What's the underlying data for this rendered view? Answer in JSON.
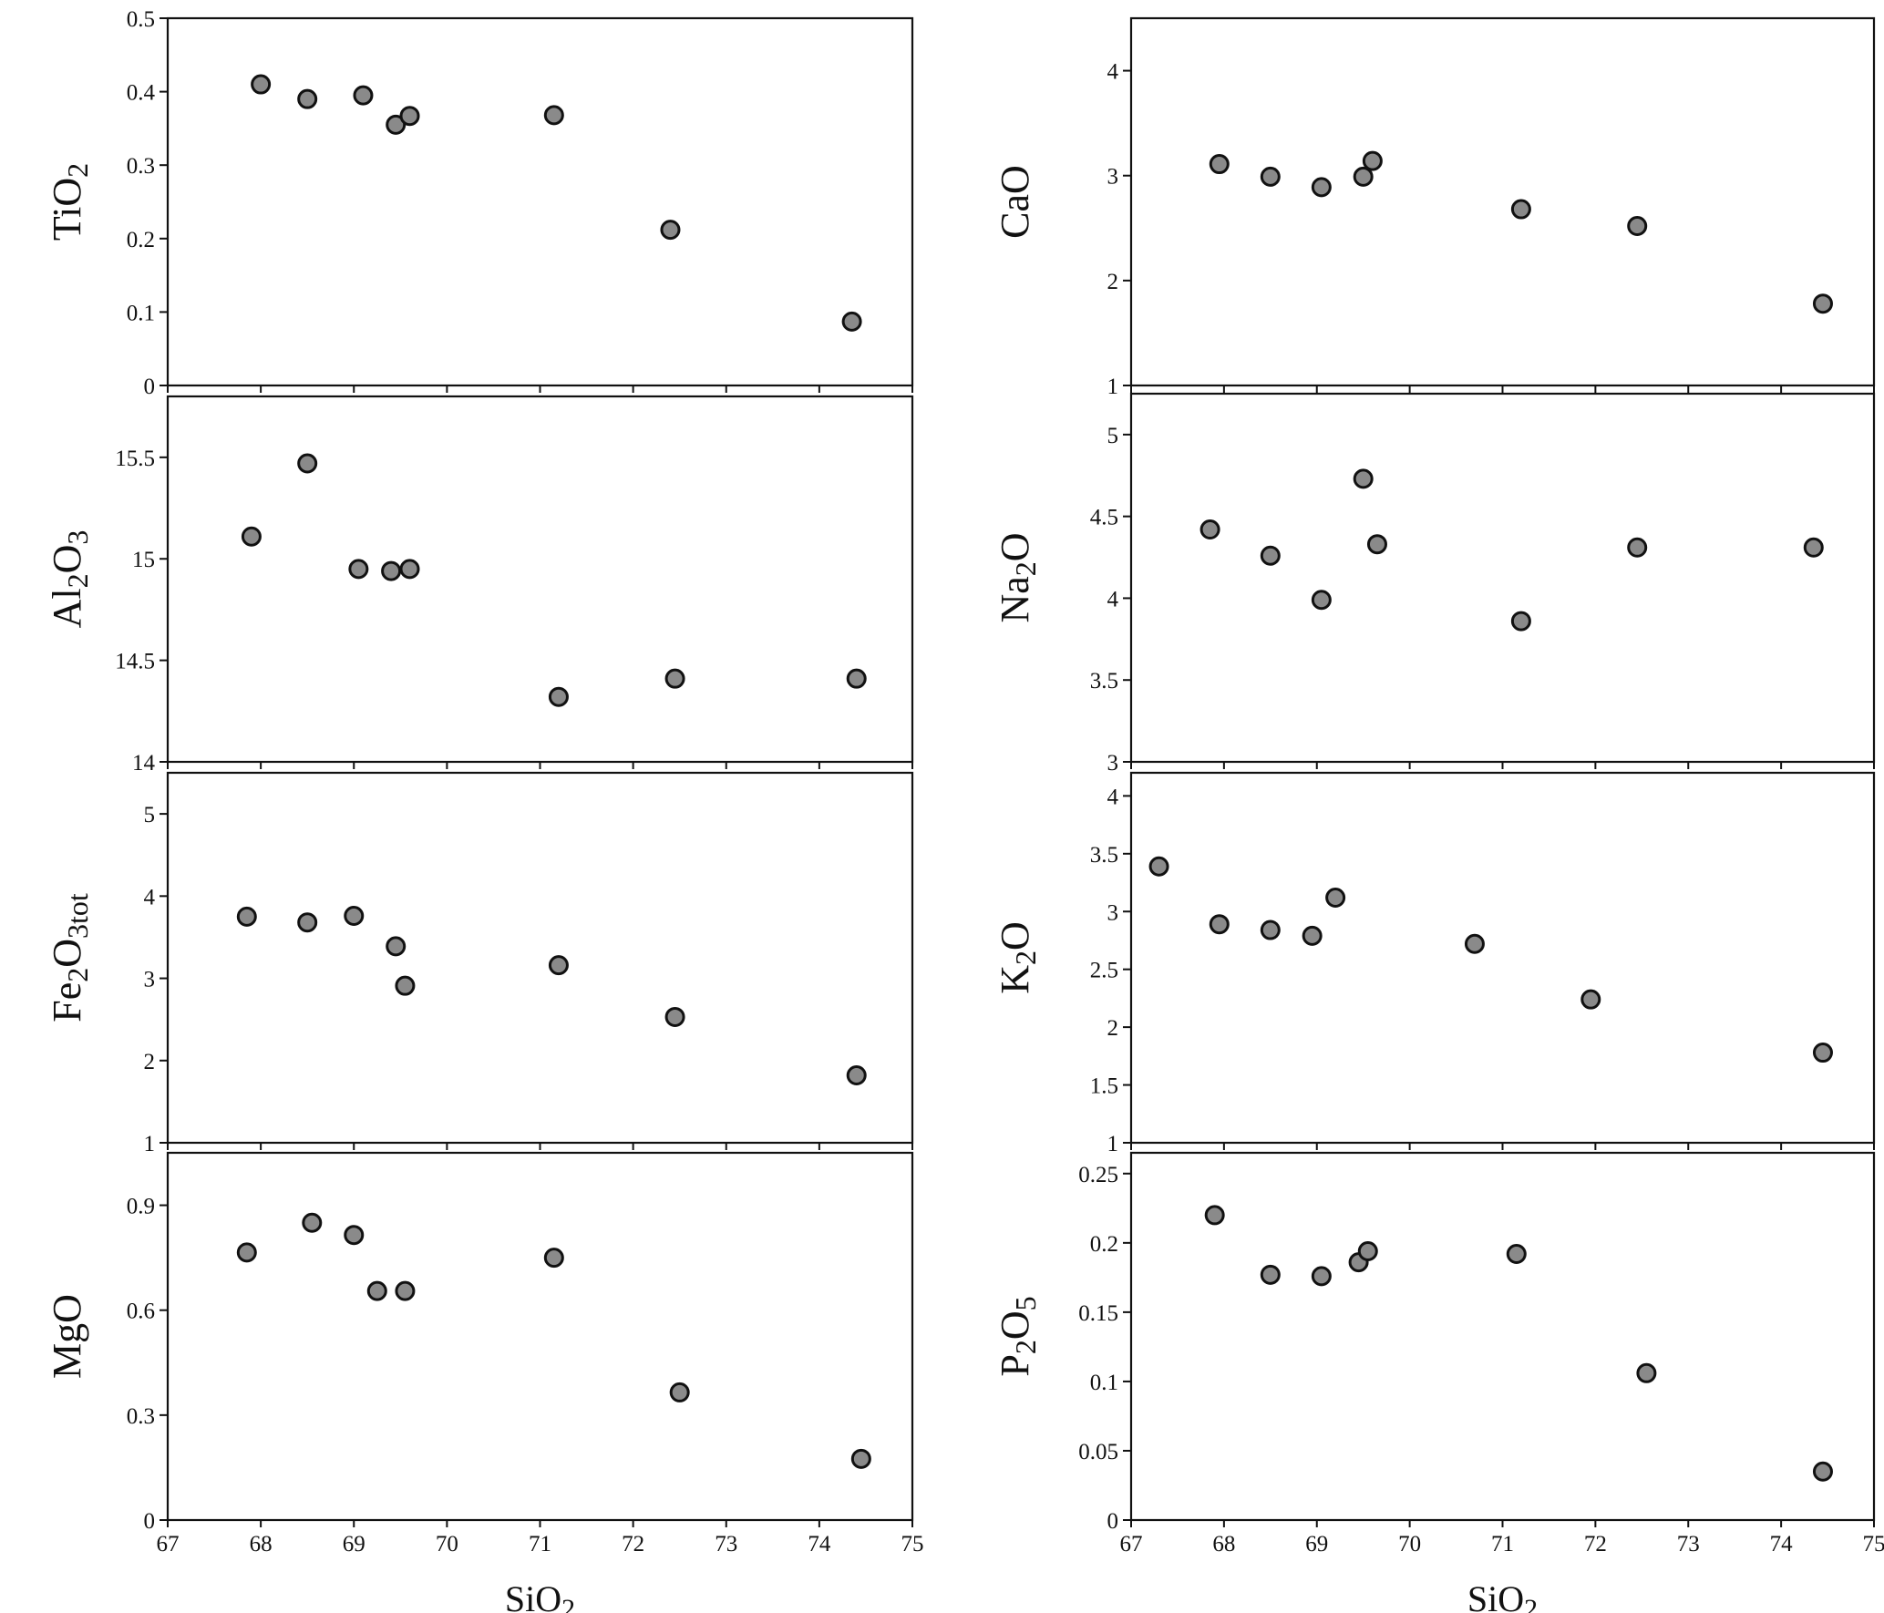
{
  "chart_data": [
    {
      "type": "scatter",
      "ylabel": "TiO2",
      "ylabel_parts": [
        [
          "Ti",
          false
        ],
        [
          "O",
          false
        ],
        [
          "2",
          true
        ]
      ],
      "xlim": [
        67,
        75
      ],
      "ylim": [
        0,
        0.5
      ],
      "yticks": [
        0,
        0.1,
        0.2,
        0.3,
        0.4,
        0.5
      ],
      "ytick_labels": [
        "0",
        "0.1",
        "0.2",
        "0.3",
        "0.4",
        "0.5"
      ],
      "points": [
        [
          68.0,
          0.41
        ],
        [
          68.5,
          0.39
        ],
        [
          69.1,
          0.395
        ],
        [
          69.45,
          0.355
        ],
        [
          69.6,
          0.367
        ],
        [
          71.15,
          0.368
        ],
        [
          72.4,
          0.212
        ],
        [
          74.35,
          0.087
        ]
      ]
    },
    {
      "type": "scatter",
      "ylabel": "Al2O3",
      "ylabel_parts": [
        [
          "Al",
          false
        ],
        [
          "2",
          true
        ],
        [
          "O",
          false
        ],
        [
          "3",
          true
        ]
      ],
      "xlim": [
        67,
        75
      ],
      "ylim": [
        14,
        15.8
      ],
      "yticks": [
        14,
        14.5,
        15,
        15.5
      ],
      "ytick_labels": [
        "14",
        "14.5",
        "15",
        "15.5"
      ],
      "points": [
        [
          67.9,
          15.11
        ],
        [
          68.5,
          15.47
        ],
        [
          69.05,
          14.95
        ],
        [
          69.4,
          14.94
        ],
        [
          69.6,
          14.95
        ],
        [
          71.2,
          14.32
        ],
        [
          72.45,
          14.41
        ],
        [
          74.4,
          14.41
        ]
      ]
    },
    {
      "type": "scatter",
      "ylabel": "Fe2O3tot",
      "ylabel_parts": [
        [
          "Fe",
          false
        ],
        [
          "2",
          true
        ],
        [
          "O",
          false
        ],
        [
          "3tot",
          true
        ]
      ],
      "xlim": [
        67,
        75
      ],
      "ylim": [
        1,
        5.5
      ],
      "yticks": [
        1,
        2,
        3,
        4,
        5
      ],
      "ytick_labels": [
        "1",
        "2",
        "3",
        "4",
        "5"
      ],
      "points": [
        [
          67.85,
          3.75
        ],
        [
          68.5,
          3.68
        ],
        [
          69.0,
          3.76
        ],
        [
          69.45,
          3.39
        ],
        [
          69.55,
          2.91
        ],
        [
          71.2,
          3.16
        ],
        [
          72.45,
          2.53
        ],
        [
          74.4,
          1.82
        ]
      ]
    },
    {
      "type": "scatter",
      "ylabel": "MgO",
      "ylabel_parts": [
        [
          "MgO",
          false
        ]
      ],
      "xlim": [
        67,
        75
      ],
      "ylim": [
        0,
        1.05
      ],
      "yticks": [
        0,
        0.3,
        0.6,
        0.9
      ],
      "ytick_labels": [
        "0",
        "0.3",
        "0.6",
        "0.9"
      ],
      "points": [
        [
          67.85,
          0.765
        ],
        [
          68.55,
          0.85
        ],
        [
          69.0,
          0.815
        ],
        [
          69.25,
          0.655
        ],
        [
          69.55,
          0.655
        ],
        [
          71.15,
          0.75
        ],
        [
          72.5,
          0.365
        ],
        [
          74.45,
          0.175
        ]
      ],
      "xticks": [
        67,
        68,
        69,
        70,
        71,
        72,
        73,
        74,
        75
      ],
      "xtick_labels": [
        "67",
        "68",
        "69",
        "70",
        "71",
        "72",
        "73",
        "74",
        "75"
      ]
    },
    {
      "type": "scatter",
      "ylabel": "CaO",
      "ylabel_parts": [
        [
          "CaO",
          false
        ]
      ],
      "xlim": [
        67,
        75
      ],
      "ylim": [
        1,
        4.5
      ],
      "yticks": [
        1,
        2,
        3,
        4
      ],
      "ytick_labels": [
        "1",
        "2",
        "3",
        "4"
      ],
      "points": [
        [
          67.95,
          3.11
        ],
        [
          68.5,
          2.99
        ],
        [
          69.05,
          2.89
        ],
        [
          69.5,
          2.99
        ],
        [
          69.6,
          3.14
        ],
        [
          71.2,
          2.68
        ],
        [
          72.45,
          2.52
        ],
        [
          74.45,
          1.78
        ]
      ]
    },
    {
      "type": "scatter",
      "ylabel": "Na2O",
      "ylabel_parts": [
        [
          "Na",
          false
        ],
        [
          "2",
          true
        ],
        [
          "O",
          false
        ]
      ],
      "xlim": [
        67,
        75
      ],
      "ylim": [
        3,
        5.25
      ],
      "yticks": [
        3,
        3.5,
        4,
        4.5,
        5
      ],
      "ytick_labels": [
        "3",
        "3.5",
        "4",
        "4.5",
        "5"
      ],
      "points": [
        [
          67.85,
          4.42
        ],
        [
          68.5,
          4.26
        ],
        [
          69.05,
          3.99
        ],
        [
          69.5,
          4.73
        ],
        [
          69.65,
          4.33
        ],
        [
          71.2,
          3.86
        ],
        [
          72.45,
          4.31
        ],
        [
          74.35,
          4.31
        ]
      ]
    },
    {
      "type": "scatter",
      "ylabel": "K2O",
      "ylabel_parts": [
        [
          "K",
          false
        ],
        [
          "2",
          true
        ],
        [
          "O",
          false
        ]
      ],
      "xlim": [
        67,
        75
      ],
      "ylim": [
        1,
        4.2
      ],
      "yticks": [
        1,
        1.5,
        2,
        2.5,
        3,
        3.5,
        4
      ],
      "ytick_labels": [
        "1",
        "1.5",
        "2",
        "2.5",
        "3",
        "3.5",
        "4"
      ],
      "points": [
        [
          67.3,
          3.39
        ],
        [
          67.95,
          2.89
        ],
        [
          68.5,
          2.84
        ],
        [
          68.95,
          2.79
        ],
        [
          69.2,
          3.12
        ],
        [
          70.7,
          2.72
        ],
        [
          71.95,
          2.24
        ],
        [
          74.45,
          1.78
        ]
      ]
    },
    {
      "type": "scatter",
      "ylabel": "P2O5",
      "ylabel_parts": [
        [
          "P",
          false
        ],
        [
          "2",
          true
        ],
        [
          "O",
          false
        ],
        [
          "5",
          true
        ]
      ],
      "xlim": [
        67,
        75
      ],
      "ylim": [
        0,
        0.265
      ],
      "yticks": [
        0,
        0.05,
        0.1,
        0.15,
        0.2,
        0.25
      ],
      "ytick_labels": [
        "0",
        "0.05",
        "0.1",
        "0.15",
        "0.2",
        "0.25"
      ],
      "points": [
        [
          67.9,
          0.22
        ],
        [
          68.5,
          0.177
        ],
        [
          69.05,
          0.176
        ],
        [
          69.45,
          0.186
        ],
        [
          69.55,
          0.194
        ],
        [
          71.15,
          0.192
        ],
        [
          72.55,
          0.106
        ],
        [
          74.45,
          0.035
        ]
      ],
      "xticks": [
        67,
        68,
        69,
        70,
        71,
        72,
        73,
        74,
        75
      ],
      "xtick_labels": [
        "67",
        "68",
        "69",
        "70",
        "71",
        "72",
        "73",
        "74",
        "75"
      ]
    }
  ],
  "xaxis": {
    "label_parts": [
      [
        "SiO",
        false
      ],
      [
        "2",
        true
      ]
    ],
    "label": "SiO2"
  },
  "style": {
    "marker_fill": "#8a8a8a",
    "marker_stroke": "#111111",
    "axis_color": "#111111"
  }
}
